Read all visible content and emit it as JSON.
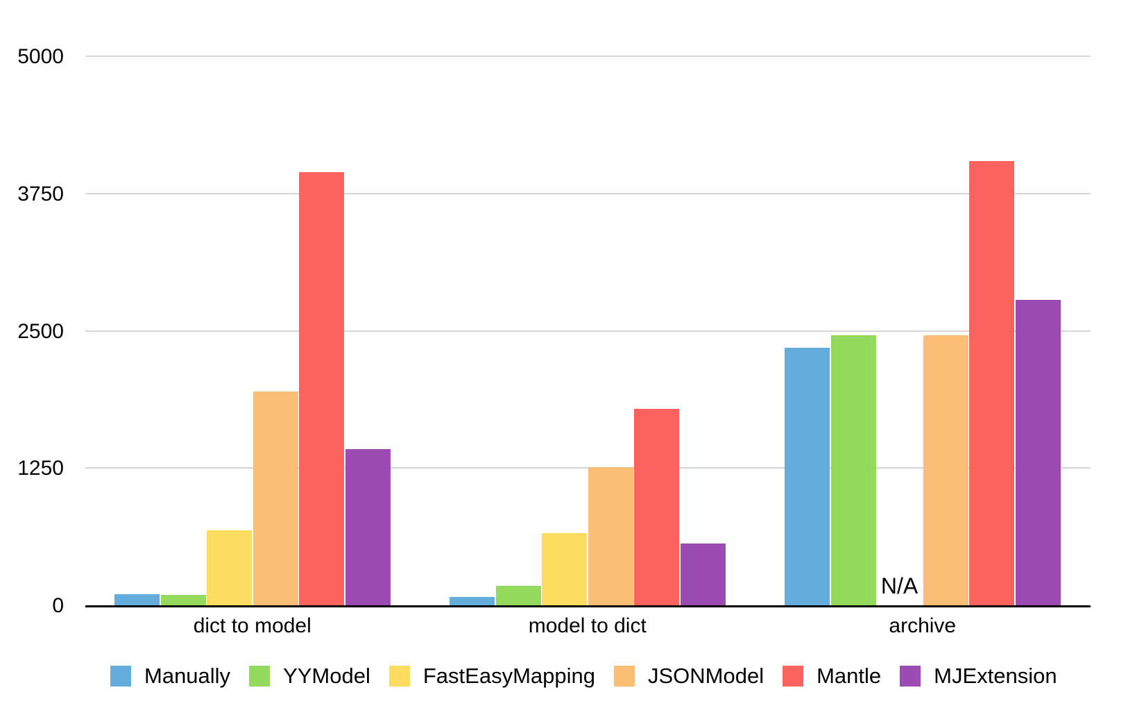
{
  "chart_data": {
    "type": "bar",
    "title": "",
    "xlabel": "",
    "ylabel": "",
    "categories": [
      "dict to model",
      "model to dict",
      "archive"
    ],
    "series": [
      {
        "name": "Manually",
        "color": "#63ADDC",
        "values": [
          100,
          75,
          2345
        ]
      },
      {
        "name": "YYModel",
        "color": "#92D95E",
        "values": [
          95,
          180,
          2460
        ]
      },
      {
        "name": "FastEasyMapping",
        "color": "#FCDB61",
        "values": [
          685,
          660,
          null
        ]
      },
      {
        "name": "JSONModel",
        "color": "#FBBE76",
        "values": [
          1950,
          1260,
          2460
        ]
      },
      {
        "name": "Mantle",
        "color": "#FB625E",
        "values": [
          3945,
          1790,
          4045
        ]
      },
      {
        "name": "MJExtension",
        "color": "#9C4BB5",
        "values": [
          1420,
          565,
          2780
        ]
      }
    ],
    "y_ticks": [
      0,
      1250,
      2500,
      3750,
      5000
    ],
    "ylim": [
      0,
      5000
    ],
    "na_label": "N/A",
    "grid": true,
    "legend_position": "bottom",
    "colors": {
      "axis": "#000000",
      "gridline": "#d6d6d6",
      "text": "#000000",
      "background": "#ffffff"
    }
  }
}
